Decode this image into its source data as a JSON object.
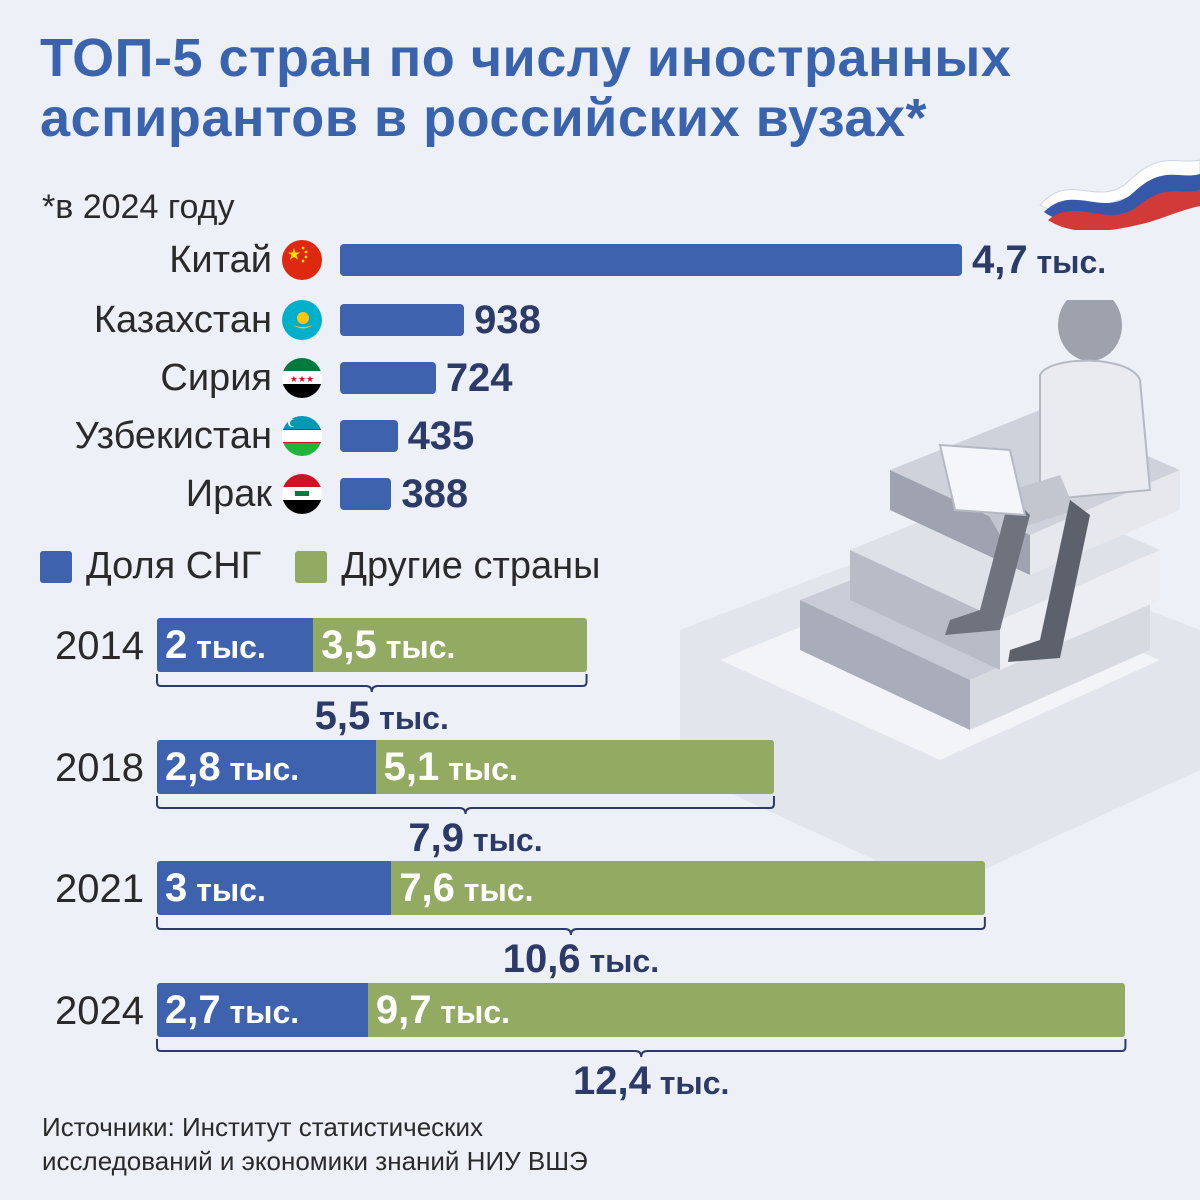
{
  "title_line1": "ТОП-5 стран по числу иностранных",
  "title_line2": "аспирантов в российских вузах*",
  "subtitle": "*в 2024 году",
  "chart_data": [
    {
      "type": "bar",
      "title": "ТОП-5 стран по числу иностранных аспирантов в российских вузах*",
      "categories": [
        "Китай",
        "Казахстан",
        "Сирия",
        "Узбекистан",
        "Ирак"
      ],
      "values": [
        4700,
        938,
        724,
        435,
        388
      ],
      "value_labels": [
        {
          "num": "4,7",
          "unit": "тыс."
        },
        {
          "num": "938",
          "unit": ""
        },
        {
          "num": "724",
          "unit": ""
        },
        {
          "num": "435",
          "unit": ""
        },
        {
          "num": "388",
          "unit": ""
        }
      ],
      "flags": [
        "china-flag",
        "kazakhstan-flag",
        "syria-flag",
        "uzbekistan-flag",
        "iraq-flag"
      ],
      "color": "#3e62ad"
    },
    {
      "type": "bar",
      "stacked": true,
      "categories": [
        "2014",
        "2018",
        "2021",
        "2024"
      ],
      "series": [
        {
          "name": "Доля СНГ",
          "color": "#3e62ad",
          "values": [
            2,
            2.8,
            3,
            2.7
          ],
          "labels": [
            "2",
            "2,8",
            "3",
            "2,7"
          ]
        },
        {
          "name": "Другие страны",
          "color": "#93aa62",
          "values": [
            3.5,
            5.1,
            7.6,
            9.7
          ],
          "labels": [
            "3,5",
            "5,1",
            "7,6",
            "9,7"
          ]
        }
      ],
      "totals": [
        5.5,
        7.9,
        10.6,
        12.4
      ],
      "total_labels": [
        "5,5",
        "7,9",
        "10,6",
        "12,4"
      ],
      "unit": "тыс.",
      "legend": "top-left"
    }
  ],
  "source_line1": "Источники: Институт статистических",
  "source_line2": "исследований и экономики знаний НИУ ВШЭ"
}
